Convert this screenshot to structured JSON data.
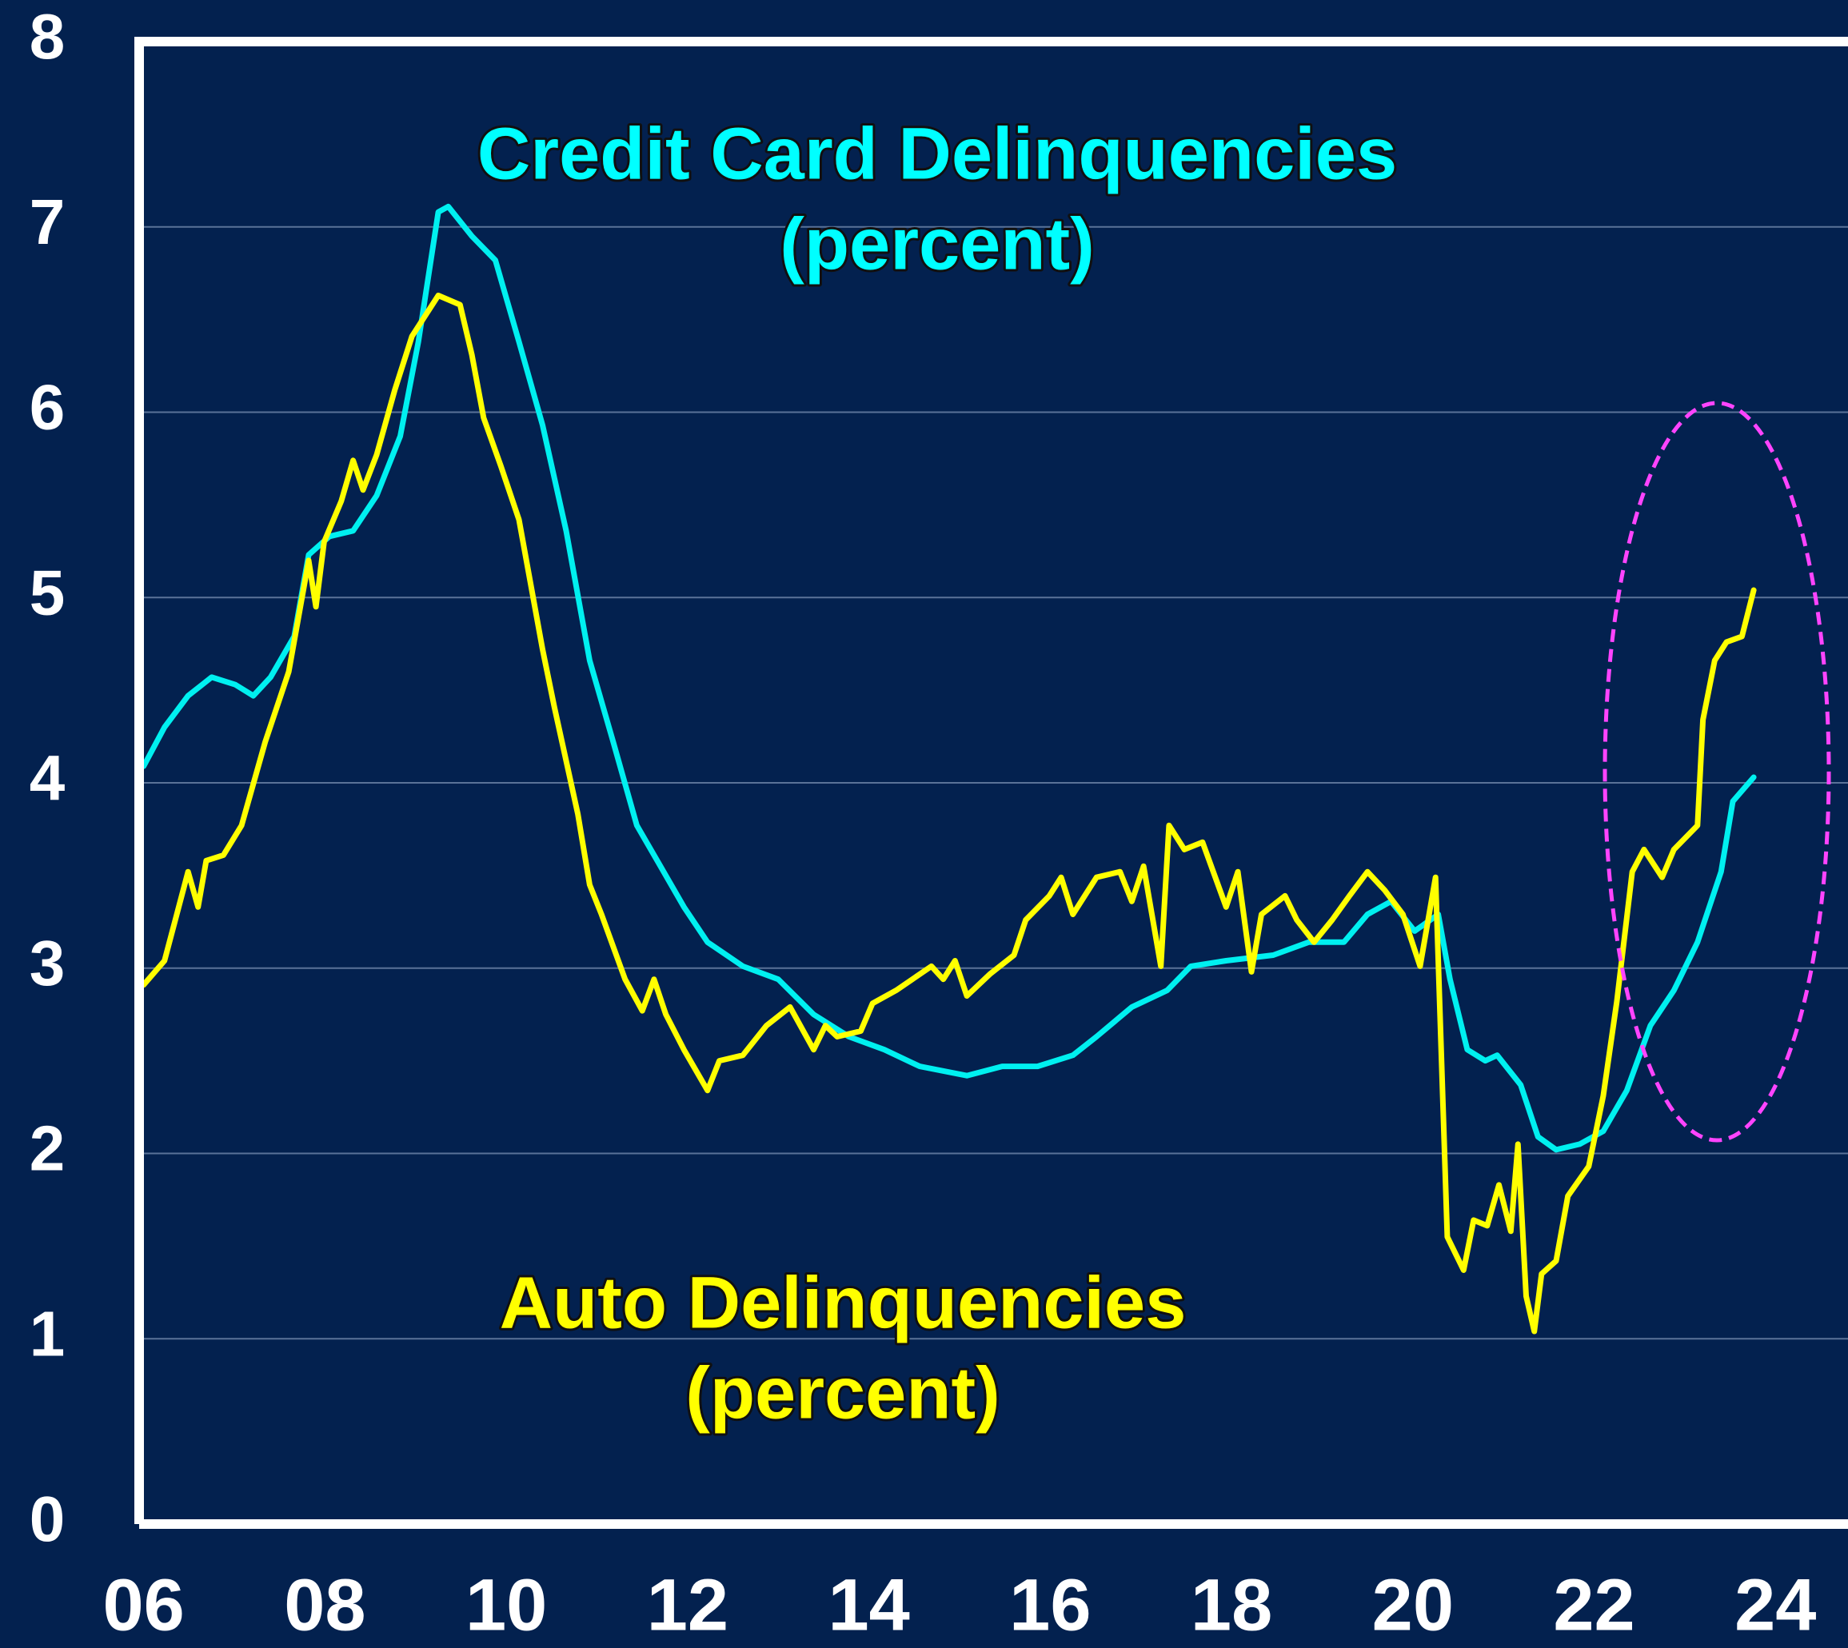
{
  "chart_data": {
    "type": "line",
    "annotations": [
      "Credit Card Delinquencies",
      "(percent)",
      "Auto Delinquencies",
      "(percent)"
    ],
    "series": [
      {
        "name": "Credit Card Delinquencies",
        "color": "#00f0f0",
        "x": [
          2006.0,
          2006.23,
          2006.49,
          2006.75,
          2007.01,
          2007.21,
          2007.4,
          2007.66,
          2007.82,
          2008.05,
          2008.31,
          2008.57,
          2008.83,
          2009.03,
          2009.25,
          2009.36,
          2009.62,
          2009.88,
          2010.14,
          2010.4,
          2010.66,
          2010.92,
          2011.18,
          2011.44,
          2011.7,
          2011.96,
          2012.22,
          2012.61,
          2013.0,
          2013.39,
          2013.78,
          2014.17,
          2014.56,
          2015.08,
          2015.47,
          2015.86,
          2016.25,
          2016.51,
          2016.9,
          2017.29,
          2017.55,
          2017.94,
          2018.46,
          2018.85,
          2019.24,
          2019.5,
          2019.76,
          2020.02,
          2020.28,
          2020.41,
          2020.6,
          2020.8,
          2020.93,
          2021.19,
          2021.38,
          2021.58,
          2021.84,
          2022.1,
          2022.36,
          2022.62,
          2022.88,
          2023.14,
          2023.4,
          2023.53,
          2023.76
        ],
        "values": [
          4.09,
          4.3,
          4.47,
          4.57,
          4.53,
          4.47,
          4.57,
          4.79,
          5.23,
          5.33,
          5.36,
          5.55,
          5.87,
          6.38,
          7.08,
          7.11,
          6.95,
          6.82,
          6.38,
          5.93,
          5.36,
          4.66,
          4.22,
          3.77,
          3.55,
          3.33,
          3.14,
          3.01,
          2.94,
          2.75,
          2.63,
          2.56,
          2.47,
          2.42,
          2.47,
          2.47,
          2.53,
          2.63,
          2.79,
          2.88,
          3.01,
          3.04,
          3.07,
          3.14,
          3.14,
          3.29,
          3.36,
          3.2,
          3.29,
          2.94,
          2.56,
          2.5,
          2.53,
          2.37,
          2.09,
          2.02,
          2.05,
          2.12,
          2.34,
          2.69,
          2.88,
          3.14,
          3.52,
          3.9,
          4.03
        ]
      },
      {
        "name": "Auto Delinquencies",
        "color": "#ffff00",
        "x": [
          2006.0,
          2006.23,
          2006.49,
          2006.6,
          2006.69,
          2006.88,
          2007.08,
          2007.34,
          2007.6,
          2007.82,
          2007.9,
          2007.99,
          2008.18,
          2008.31,
          2008.42,
          2008.57,
          2008.77,
          2008.96,
          2009.25,
          2009.49,
          2009.62,
          2009.75,
          2009.94,
          2010.14,
          2010.4,
          2010.53,
          2010.79,
          2010.92,
          2011.05,
          2011.31,
          2011.5,
          2011.63,
          2011.76,
          2011.96,
          2012.22,
          2012.35,
          2012.61,
          2012.87,
          2013.13,
          2013.39,
          2013.52,
          2013.65,
          2013.91,
          2014.04,
          2014.3,
          2014.69,
          2014.82,
          2014.95,
          2015.08,
          2015.34,
          2015.6,
          2015.73,
          2015.99,
          2016.12,
          2016.25,
          2016.51,
          2016.77,
          2016.9,
          2017.03,
          2017.22,
          2017.31,
          2017.48,
          2017.68,
          2017.94,
          2018.07,
          2018.22,
          2018.33,
          2018.59,
          2018.72,
          2018.91,
          2019.11,
          2019.3,
          2019.5,
          2019.69,
          2019.89,
          2020.08,
          2020.25,
          2020.38,
          2020.56,
          2020.67,
          2020.82,
          2020.95,
          2021.08,
          2021.16,
          2021.25,
          2021.34,
          2021.42,
          2021.58,
          2021.71,
          2021.94,
          2022.1,
          2022.25,
          2022.42,
          2022.55,
          2022.75,
          2022.88,
          2023.14,
          2023.2,
          2023.33,
          2023.46,
          2023.63,
          2023.76
        ],
        "values": [
          2.91,
          3.04,
          3.52,
          3.33,
          3.58,
          3.61,
          3.77,
          4.22,
          4.6,
          5.2,
          4.95,
          5.3,
          5.52,
          5.74,
          5.58,
          5.77,
          6.12,
          6.41,
          6.63,
          6.58,
          6.31,
          5.97,
          5.71,
          5.42,
          4.72,
          4.41,
          3.83,
          3.45,
          3.29,
          2.94,
          2.77,
          2.94,
          2.75,
          2.56,
          2.34,
          2.5,
          2.53,
          2.69,
          2.79,
          2.56,
          2.69,
          2.63,
          2.66,
          2.81,
          2.88,
          3.01,
          2.94,
          3.04,
          2.85,
          2.97,
          3.07,
          3.26,
          3.39,
          3.49,
          3.29,
          3.49,
          3.52,
          3.36,
          3.55,
          3.01,
          3.77,
          3.64,
          3.68,
          3.33,
          3.52,
          2.98,
          3.29,
          3.39,
          3.26,
          3.14,
          3.26,
          3.39,
          3.52,
          3.42,
          3.29,
          3.01,
          3.49,
          1.55,
          1.37,
          1.64,
          1.61,
          1.83,
          1.58,
          2.05,
          1.23,
          1.04,
          1.35,
          1.42,
          1.77,
          1.93,
          2.31,
          2.82,
          3.52,
          3.64,
          3.49,
          3.64,
          3.77,
          4.34,
          4.66,
          4.76,
          4.79,
          5.04
        ]
      }
    ],
    "xlim": [
      2005.95,
      2024.8
    ],
    "xticks": [
      {
        "value": 2006,
        "label": "06"
      },
      {
        "value": 2008,
        "label": "08"
      },
      {
        "value": 2010,
        "label": "10"
      },
      {
        "value": 2012,
        "label": "12"
      },
      {
        "value": 2014,
        "label": "14"
      },
      {
        "value": 2016,
        "label": "16"
      },
      {
        "value": 2018,
        "label": "18"
      },
      {
        "value": 2020,
        "label": "20"
      },
      {
        "value": 2022,
        "label": "22"
      },
      {
        "value": 2024,
        "label": "24"
      }
    ],
    "ylim": [
      0,
      8
    ],
    "yticks": [
      0,
      1,
      2,
      3,
      4,
      5,
      6,
      7,
      8
    ],
    "grid": true
  }
}
